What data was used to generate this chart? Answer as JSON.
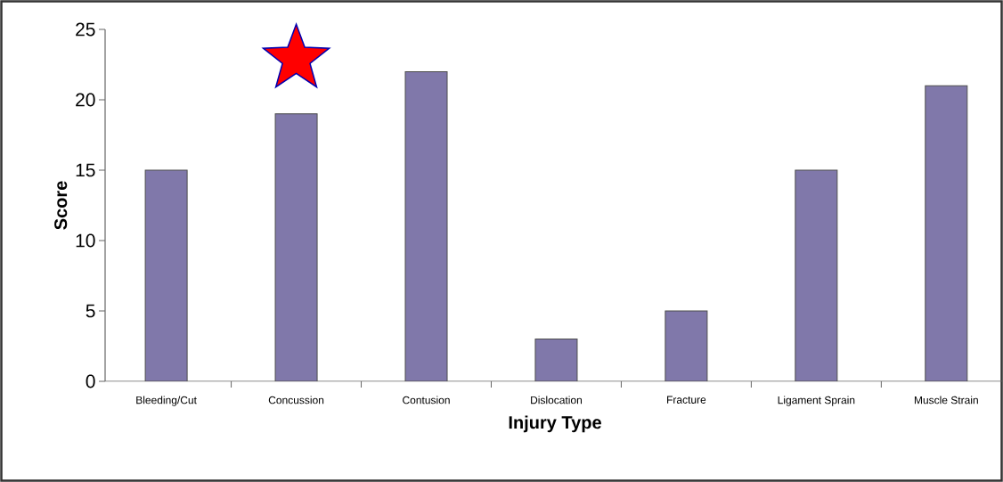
{
  "chart_data": {
    "type": "bar",
    "xlabel": "Injury Type",
    "ylabel": "Score",
    "categories": [
      "Bleeding/Cut",
      "Concussion",
      "Contusion",
      "Dislocation",
      "Fracture",
      "Ligament Sprain",
      "Muscle Strain"
    ],
    "values": [
      15,
      19,
      22,
      3,
      5,
      15,
      21
    ],
    "color": "#8078aa",
    "ylim": [
      0,
      25
    ],
    "yticks": [
      0,
      5,
      10,
      15,
      20,
      25
    ],
    "grid": false
  }
}
